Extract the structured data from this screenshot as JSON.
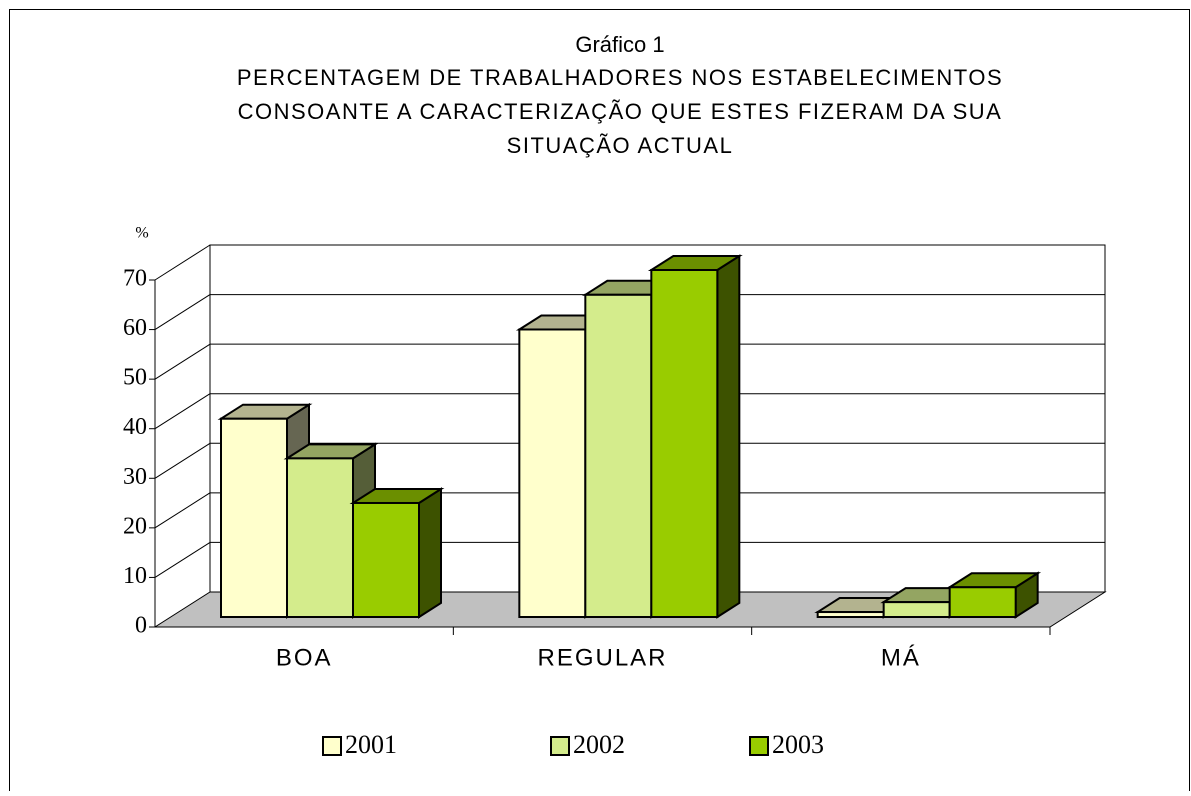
{
  "chart_data": {
    "type": "bar3d",
    "title": "Gráfico 1",
    "subtitle": [
      "PERCENTAGEM DE TRABALHADORES NOS ESTABELECIMENTOS",
      "CONSOANTE A CARACTERIZAÇÃO QUE ESTES FIZERAM DA SUA",
      "SITUAÇÃO ACTUAL"
    ],
    "y_label": "%",
    "categories": [
      "BOA",
      "REGULAR",
      "MÁ"
    ],
    "series": [
      {
        "name": "2001",
        "color": "#ffffcc",
        "values": [
          40,
          58,
          1
        ]
      },
      {
        "name": "2002",
        "color": "#d4ec8c",
        "values": [
          32,
          65,
          3
        ]
      },
      {
        "name": "2003",
        "color": "#99cc00",
        "values": [
          23,
          70,
          6
        ]
      }
    ],
    "ylim": [
      0,
      70
    ],
    "yticks": [
      0,
      10,
      20,
      30,
      40,
      50,
      60,
      70
    ],
    "grid": true,
    "legend": "bottom"
  }
}
